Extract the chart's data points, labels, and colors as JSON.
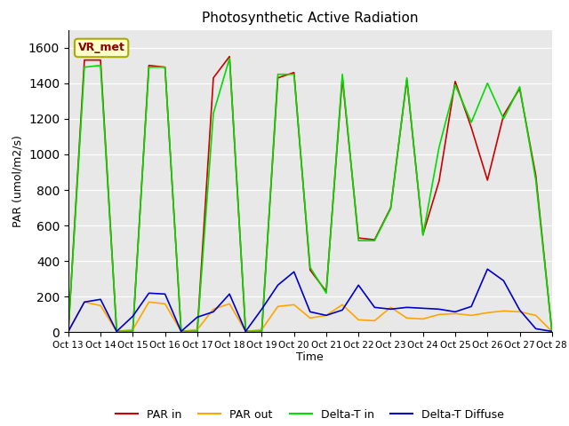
{
  "title": "Photosynthetic Active Radiation",
  "ylabel": "PAR (umol/m2/s)",
  "xlabel": "Time",
  "legend_label": "VR_met",
  "ylim": [
    0,
    1700
  ],
  "line_colors": {
    "par_in": "#cc0000",
    "par_out": "#ffa500",
    "delta_t_in": "#00dd00",
    "delta_t_diffuse": "#0000cc"
  },
  "background_color": "#e8e8e8",
  "xtick_labels": [
    "Oct 13",
    "Oct 14",
    "Oct 15",
    "Oct 16",
    "Oct 17",
    "Oct 18",
    "Oct 19",
    "Oct 20",
    "Oct 21",
    "Oct 22",
    "Oct 23",
    "Oct 24",
    "Oct 25",
    "Oct 26",
    "Oct 27",
    "Oct 28"
  ],
  "x": [
    0,
    1,
    2,
    3,
    4,
    5,
    6,
    7,
    8,
    9,
    10,
    11,
    12,
    13,
    14,
    15,
    16,
    17,
    18,
    19,
    20,
    21,
    22,
    23,
    24,
    25,
    26,
    27,
    28,
    29,
    30
  ],
  "par_in": [
    5,
    1530,
    1530,
    5,
    5,
    1500,
    1490,
    5,
    5,
    1430,
    1550,
    5,
    5,
    1430,
    1460,
    350,
    230,
    1430,
    530,
    520,
    700,
    1420,
    550,
    850,
    1410,
    1150,
    855,
    1220,
    1370,
    880,
    5
  ],
  "par_out": [
    5,
    170,
    150,
    5,
    15,
    170,
    160,
    5,
    15,
    130,
    160,
    5,
    15,
    145,
    155,
    80,
    95,
    155,
    70,
    65,
    140,
    80,
    75,
    100,
    105,
    95,
    110,
    120,
    115,
    95,
    5
  ],
  "delta_t_in": [
    5,
    1490,
    1500,
    5,
    5,
    1490,
    1490,
    5,
    5,
    1230,
    1540,
    5,
    5,
    1450,
    1450,
    365,
    220,
    1450,
    515,
    515,
    695,
    1430,
    545,
    1040,
    1390,
    1180,
    1400,
    1200,
    1380,
    855,
    5
  ],
  "delta_t_diffuse": [
    5,
    170,
    185,
    5,
    90,
    220,
    215,
    5,
    85,
    115,
    215,
    5,
    130,
    265,
    340,
    115,
    95,
    125,
    265,
    140,
    130,
    140,
    135,
    130,
    115,
    145,
    355,
    290,
    125,
    20,
    5
  ],
  "xtick_positions": [
    0,
    2,
    4,
    6,
    8,
    10,
    12,
    14,
    16,
    18,
    20,
    22,
    24,
    26,
    28,
    30
  ]
}
